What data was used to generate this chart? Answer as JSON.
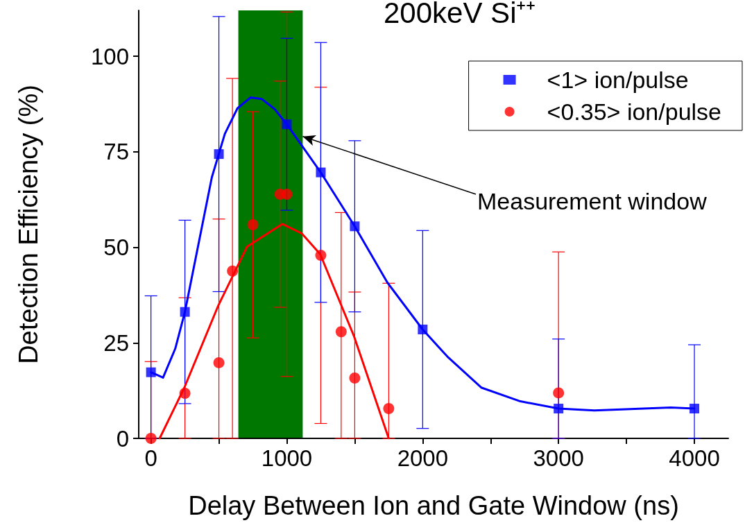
{
  "chart_data": {
    "type": "scatter",
    "title": "200keV Si⁺⁺",
    "xlabel": "Delay Between Ion and Gate Window (ns)",
    "ylabel": "Detection Efficiency (%)",
    "xlim": [
      -90,
      4250
    ],
    "xticks": [
      0,
      {
        "value": 500,
        "label": null
      },
      1000,
      {
        "value": 1500,
        "label": null
      },
      2000,
      {
        "value": 2500,
        "label": null
      },
      3000,
      {
        "value": 3500,
        "label": null
      },
      4000
    ],
    "ylim": [
      0,
      112
    ],
    "yticks": [
      0,
      25,
      50,
      75,
      100
    ],
    "grid": false,
    "legend": "top right",
    "bands": [
      {
        "axis": "x",
        "from": 643,
        "to": 1117,
        "color": "#007700"
      }
    ],
    "annotations": [
      {
        "text": "Measurement window",
        "x": 1117,
        "y": 79
      }
    ],
    "series": [
      {
        "name": "<1> ion/pulse",
        "marker": "square",
        "color": "#0000ff",
        "x": [
          0,
          250,
          500,
          1000,
          1250,
          1500,
          2000,
          3000,
          4000
        ],
        "values": [
          17.3,
          33.1,
          74.4,
          82.2,
          69.6,
          55.5,
          28.5,
          7.8,
          7.8
        ],
        "errors": [
          [
            0,
            37.3
          ],
          24,
          36,
          22.5,
          34,
          22.4,
          25.9,
          [
            0,
            26
          ],
          [
            0,
            24.5
          ]
        ]
      },
      {
        "name": "<0.35> ion/pulse",
        "marker": "circle",
        "color": "#ff0000",
        "x": [
          0,
          250,
          500,
          600,
          750,
          950,
          1000,
          1250,
          1400,
          1500,
          1750,
          3000
        ],
        "values": [
          0,
          11.8,
          19.8,
          43.8,
          55.9,
          63.9,
          63.9,
          47.9,
          27.9,
          15.8,
          7.8,
          11.9
        ],
        "errors": [
          [
            0,
            20.1
          ],
          [
            0,
            36.8
          ],
          [
            0,
            57.4
          ],
          [
            0,
            94.2
          ],
          29.6,
          29.6,
          [
            16.2,
            111.6
          ],
          44,
          [
            0,
            59.1
          ],
          [
            0,
            38.3
          ],
          [
            0,
            40.6
          ],
          [
            0,
            48.8
          ]
        ]
      },
      {
        "type": "line",
        "marker": "none",
        "color": "#0000ff",
        "x": [
          0,
          89,
          179,
          250,
          448,
          544,
          637,
          733,
          817,
          910,
          1000,
          1250,
          1500,
          1740,
          2000,
          2182,
          2431,
          2719,
          3000,
          3264,
          3826,
          4000
        ],
        "values": [
          17.3,
          15.9,
          23.5,
          33.1,
          68.3,
          79.7,
          86.4,
          89.2,
          88.8,
          86.2,
          82.2,
          69.6,
          55.5,
          40.8,
          28.5,
          21.4,
          13.3,
          9.7,
          7.8,
          7.3,
          8.1,
          7.8
        ]
      },
      {
        "type": "line",
        "marker": "none",
        "color": "#ff0000",
        "x": [
          64,
          246,
          496,
          708,
          967,
          1111,
          1246,
          1495,
          1750
        ],
        "values": [
          0,
          13.3,
          34.8,
          50.2,
          56.1,
          53.6,
          48.2,
          26.7,
          0
        ]
      }
    ]
  }
}
